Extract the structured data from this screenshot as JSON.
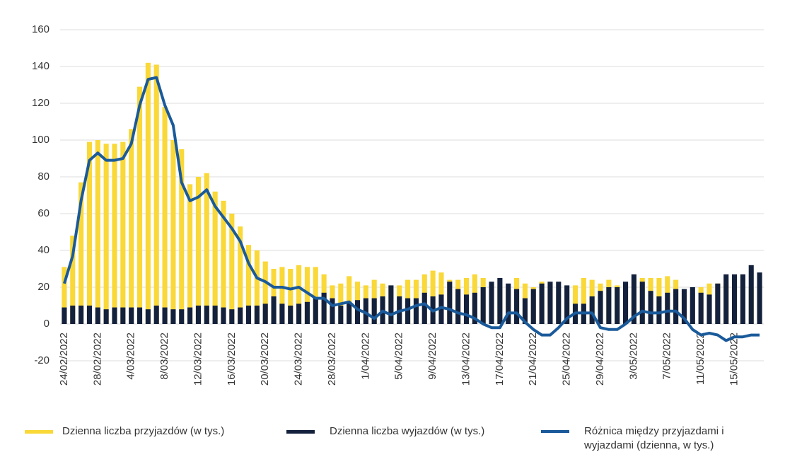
{
  "chart_data": {
    "type": "bar",
    "categories": [
      "24/02/2022",
      null,
      null,
      null,
      "28/02/2022",
      null,
      null,
      null,
      "4/03/2022",
      null,
      null,
      null,
      "8/03/2022",
      null,
      null,
      null,
      "12/03/2022",
      null,
      null,
      null,
      "16/03/2022",
      null,
      null,
      null,
      "20/03/2022",
      null,
      null,
      null,
      "24/03/2022",
      null,
      null,
      null,
      "28/03/2022",
      null,
      null,
      null,
      "1/04/2022",
      null,
      null,
      null,
      "5/04/2022",
      null,
      null,
      null,
      "9/04/2022",
      null,
      null,
      null,
      "13/04/2022",
      null,
      null,
      null,
      "17/04/2022",
      null,
      null,
      null,
      "21/04/2022",
      null,
      null,
      null,
      "25/04/2022",
      null,
      null,
      null,
      "29/04/2022",
      null,
      null,
      null,
      "3/05/2022",
      null,
      null,
      null,
      "7/05/2022",
      null,
      null,
      null,
      "11/05/2022",
      null,
      null,
      null,
      "15/05/2022",
      null,
      null,
      null
    ],
    "series": [
      {
        "name": "Dzienna liczba przyjazdów (w tys.)",
        "color": "#f9d838",
        "type": "bar",
        "values": [
          31,
          48,
          77,
          99,
          100,
          98,
          98,
          99,
          106,
          129,
          142,
          141,
          118,
          100,
          95,
          76,
          80,
          82,
          72,
          67,
          60,
          53,
          43,
          40,
          34,
          30,
          31,
          30,
          32,
          31,
          31,
          27,
          21,
          22,
          26,
          23,
          21,
          24,
          22,
          20,
          21,
          24,
          24,
          27,
          29,
          28,
          24,
          24,
          25,
          27,
          25,
          21,
          20,
          19,
          25,
          22,
          20,
          23,
          17,
          16,
          13,
          21,
          25,
          24,
          22,
          24,
          21,
          20,
          18,
          25,
          25,
          25,
          26,
          24,
          17,
          17,
          20,
          22,
          22,
          22,
          20,
          20,
          20,
          21
        ]
      },
      {
        "name": "Dzienna liczba wyjazdów (w tys.)",
        "color": "#14213d",
        "type": "bar",
        "values": [
          9,
          10,
          10,
          10,
          9,
          8,
          9,
          9,
          9,
          9,
          8,
          10,
          9,
          8,
          8,
          9,
          10,
          10,
          10,
          9,
          8,
          9,
          10,
          10,
          11,
          15,
          11,
          10,
          11,
          12,
          14,
          17,
          14,
          10,
          12,
          13,
          14,
          14,
          15,
          21,
          15,
          14,
          14,
          17,
          15,
          16,
          23,
          19,
          16,
          17,
          20,
          23,
          25,
          22,
          19,
          14,
          19,
          22,
          23,
          23,
          21,
          11,
          11,
          15,
          18,
          20,
          20,
          23,
          27,
          23,
          18,
          15,
          17,
          19,
          19,
          20,
          17,
          16,
          22,
          27,
          27,
          27,
          32,
          28
        ]
      },
      {
        "name": "Różnica między przyjazdami i wyjazdami (dzienna, w tys.)",
        "color": "#1a5a9a",
        "type": "line",
        "values": [
          22,
          37,
          67,
          89,
          93,
          89,
          89,
          90,
          98,
          119,
          133,
          134,
          119,
          108,
          77,
          67,
          69,
          73,
          64,
          58,
          52,
          45,
          33,
          25,
          23,
          20,
          20,
          19,
          20,
          17,
          14,
          14,
          10,
          11,
          12,
          8,
          6,
          3,
          7,
          5,
          7,
          8,
          10,
          11,
          7,
          9,
          8,
          6,
          5,
          3,
          0,
          -2,
          -2,
          6,
          6,
          1,
          -3,
          -6,
          -6,
          -2,
          3,
          6,
          6,
          6,
          -2,
          -3,
          -3,
          0,
          4,
          7,
          6,
          6,
          7,
          7,
          3,
          -3,
          -6,
          -5,
          -6,
          -9,
          -7,
          -7,
          -6,
          -6
        ]
      }
    ],
    "ylim": [
      -20,
      160
    ],
    "yticks": [
      -20,
      0,
      20,
      40,
      60,
      80,
      100,
      120,
      140,
      160
    ],
    "grid": true
  }
}
